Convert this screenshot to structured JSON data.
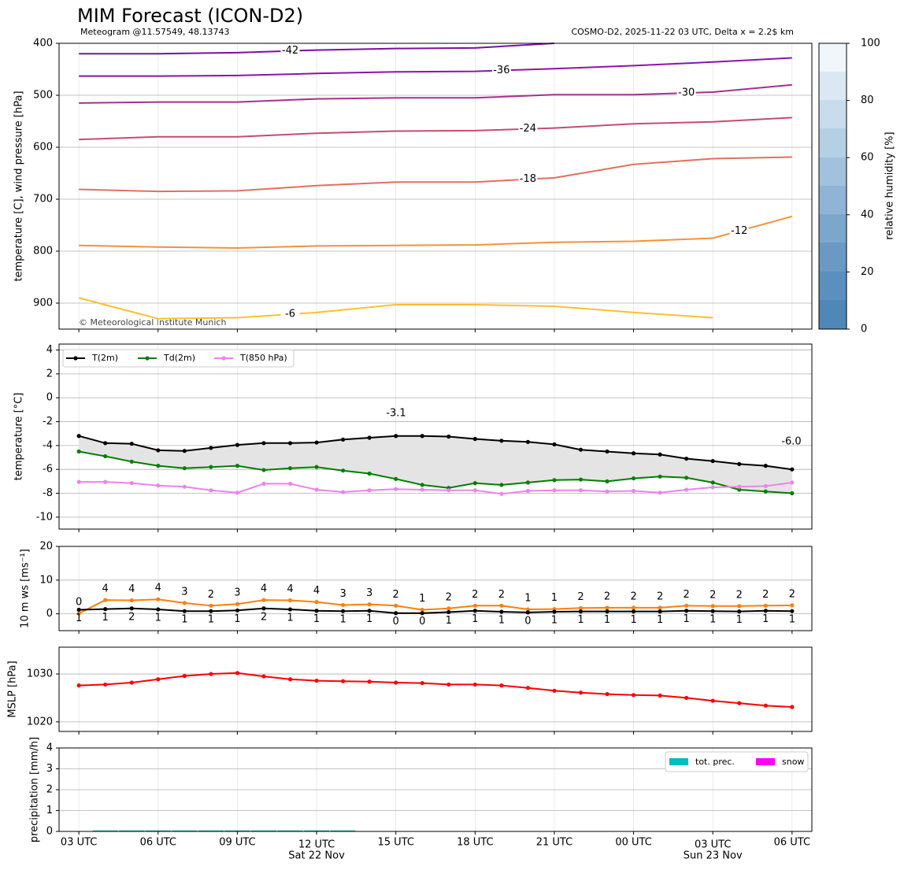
{
  "header": {
    "title": "MIM Forecast (ICON-D2)",
    "subtitle": "Meteogram @11.57549, 48.13743",
    "run_info": "COSMO-D2, 2025-11-22 03 UTC, Delta x = 2.2$ km",
    "copyright": "© Meteorological Institute Munich"
  },
  "time_axis": {
    "x": [
      0,
      1,
      2,
      3,
      4,
      5,
      6,
      7,
      8,
      9,
      10,
      11,
      12,
      13,
      14,
      15,
      16,
      17,
      18,
      19,
      20,
      21,
      22,
      23,
      24,
      25,
      26,
      27
    ],
    "xlim": [
      -0.75,
      27.75
    ],
    "xticks": [
      {
        "value": 0,
        "label": "03 UTC"
      },
      {
        "value": 3,
        "label": "06 UTC"
      },
      {
        "value": 6,
        "label": "09 UTC"
      },
      {
        "value": 9,
        "label": "12 UTC"
      },
      {
        "value": 12,
        "label": "15 UTC"
      },
      {
        "value": 15,
        "label": "18 UTC"
      },
      {
        "value": 18,
        "label": "21 UTC"
      },
      {
        "value": 21,
        "label": "00 UTC"
      },
      {
        "value": 24,
        "label": "03 UTC"
      },
      {
        "value": 27,
        "label": "06 UTC"
      }
    ],
    "date_labels": [
      {
        "value": 9,
        "label": "Sat 22 Nov"
      },
      {
        "value": 24,
        "label": "Sun 23 Nov"
      }
    ]
  },
  "chart_data": [
    {
      "type": "contour",
      "ylabel": "temperature [C], wind pressure [hPa]",
      "x": [
        0,
        3,
        6,
        9,
        12,
        15,
        18,
        21,
        24,
        27
      ],
      "ylim": [
        950,
        400
      ],
      "yticks": [
        400,
        500,
        600,
        700,
        800,
        900
      ],
      "grid": true,
      "series": [
        {
          "name": "-42",
          "color": "#7b10a0",
          "values": [
            420,
            420,
            418,
            413,
            410,
            409,
            400,
            null,
            null,
            null
          ]
        },
        {
          "name": "-36",
          "color": "#8b14aa",
          "values": [
            463,
            463,
            462,
            458,
            455,
            454,
            449,
            443,
            436,
            428
          ]
        },
        {
          "name": "-30",
          "color": "#a8308a",
          "values": [
            515,
            513,
            513,
            507,
            505,
            505,
            499,
            499,
            494,
            480
          ]
        },
        {
          "name": "-24",
          "color": "#c74c6c",
          "values": [
            585,
            580,
            580,
            573,
            569,
            568,
            563,
            555,
            551,
            543
          ]
        },
        {
          "name": "-18",
          "color": "#e2705c",
          "values": [
            681,
            685,
            684,
            674,
            667,
            667,
            659,
            633,
            622,
            619
          ]
        },
        {
          "name": "-12",
          "color": "#f5913a",
          "values": [
            789,
            792,
            794,
            790,
            789,
            788,
            783,
            781,
            775,
            733
          ]
        },
        {
          "name": "-6",
          "color": "#fbbf2e",
          "values": [
            890,
            930,
            928,
            918,
            903,
            903,
            906,
            918,
            928,
            null
          ]
        }
      ],
      "colorbar": {
        "label": "relative humidity [%]",
        "lim": [
          0,
          100
        ],
        "ticks": [
          0,
          20,
          40,
          60,
          80,
          100
        ]
      }
    },
    {
      "type": "line",
      "ylabel": "temperature [°C]",
      "ylim": [
        -11,
        4.5
      ],
      "yticks": [
        -10,
        -8,
        -6,
        -4,
        -2,
        0,
        2,
        4
      ],
      "grid": true,
      "shade_between_first_two": true,
      "legend": "upper left",
      "series": [
        {
          "name": "T(2m)",
          "color": "#000000",
          "values": [
            -3.2,
            -3.8,
            -3.85,
            -4.4,
            -4.45,
            -4.2,
            -3.95,
            -3.8,
            -3.8,
            -3.75,
            -3.5,
            -3.35,
            -3.2,
            -3.2,
            -3.25,
            -3.45,
            -3.6,
            -3.7,
            -3.9,
            -4.35,
            -4.5,
            -4.65,
            -4.75,
            -5.1,
            -5.3,
            -5.55,
            -5.7,
            -6.0
          ]
        },
        {
          "name": "Td(2m)",
          "color": "#008000",
          "values": [
            -4.5,
            -4.9,
            -5.35,
            -5.7,
            -5.9,
            -5.8,
            -5.7,
            -6.05,
            -5.9,
            -5.8,
            -6.1,
            -6.35,
            -6.8,
            -7.3,
            -7.55,
            -7.15,
            -7.3,
            -7.1,
            -6.9,
            -6.85,
            -7.0,
            -6.75,
            -6.6,
            -6.7,
            -7.1,
            -7.7,
            -7.85,
            -8.0
          ]
        },
        {
          "name": "T(850 hPa)",
          "color": "#ee82ee",
          "values": [
            -7.05,
            -7.05,
            -7.15,
            -7.35,
            -7.45,
            -7.75,
            -7.95,
            -7.2,
            -7.2,
            -7.7,
            -7.9,
            -7.75,
            -7.65,
            -7.7,
            -7.75,
            -7.75,
            -8.05,
            -7.8,
            -7.75,
            -7.75,
            -7.85,
            -7.8,
            -7.95,
            -7.7,
            -7.5,
            -7.45,
            -7.4,
            -7.1
          ]
        }
      ],
      "annotations": [
        {
          "text": "-3.1",
          "color": "#ff0000"
        },
        {
          "text": "-6.0",
          "color": "#0000ff"
        }
      ]
    },
    {
      "type": "line",
      "ylabel": "10 m ws [ms⁻¹]",
      "ylim": [
        -5,
        20
      ],
      "yticks": [
        0,
        10,
        20
      ],
      "grid": true,
      "series": [
        {
          "color": "#ff7f0e",
          "label_side": "above",
          "values": [
            0.1,
            4.1,
            4.0,
            4.3,
            3.2,
            2.4,
            2.9,
            4.1,
            4.0,
            3.5,
            2.6,
            2.8,
            2.4,
            1.2,
            1.6,
            2.4,
            2.4,
            1.3,
            1.4,
            1.7,
            1.8,
            1.8,
            1.8,
            2.4,
            2.3,
            2.3,
            2.4,
            2.5
          ],
          "value_labels": [
            "0",
            "4",
            "4",
            "4",
            "3",
            "2",
            "3",
            "4",
            "4",
            "4",
            "3",
            "3",
            "2",
            "1",
            "2",
            "2",
            "2",
            "1",
            "1",
            "2",
            "2",
            "2",
            "2",
            "2",
            "2",
            "2",
            "2",
            "2"
          ]
        },
        {
          "color": "#000000",
          "label_side": "below",
          "values": [
            1.2,
            1.4,
            1.6,
            1.3,
            0.8,
            0.8,
            1.0,
            1.6,
            1.3,
            0.9,
            0.8,
            0.9,
            0.2,
            0.2,
            0.5,
            0.9,
            0.6,
            0.4,
            0.6,
            0.7,
            0.7,
            0.7,
            0.7,
            0.9,
            0.8,
            0.7,
            0.9,
            0.8
          ],
          "value_labels": [
            "1",
            "1",
            "2",
            "1",
            "1",
            "1",
            "1",
            "2",
            "1",
            "1",
            "1",
            "1",
            "0",
            "0",
            "1",
            "1",
            "1",
            "0",
            "1",
            "1",
            "1",
            "1",
            "1",
            "1",
            "1",
            "1",
            "1",
            "1"
          ]
        }
      ]
    },
    {
      "type": "line",
      "ylabel": "MSLP [hPa]",
      "ylim": [
        1018,
        1035.6
      ],
      "yticks": [
        1020,
        1030
      ],
      "grid": true,
      "series": [
        {
          "color": "#ff0000",
          "values": [
            1027.6,
            1027.8,
            1028.2,
            1028.9,
            1029.6,
            1030.0,
            1030.2,
            1029.5,
            1028.9,
            1028.6,
            1028.5,
            1028.4,
            1028.2,
            1028.1,
            1027.8,
            1027.8,
            1027.6,
            1027.1,
            1026.5,
            1026.1,
            1025.8,
            1025.6,
            1025.5,
            1025.0,
            1024.4,
            1023.9,
            1023.4,
            1023.1
          ]
        }
      ]
    },
    {
      "type": "bar",
      "ylabel": "precipitation [mm/h]",
      "ylim": [
        0,
        4
      ],
      "yticks": [
        0,
        1,
        2,
        3,
        4
      ],
      "grid": true,
      "legend": "upper right",
      "series": [
        {
          "name": "tot. prec.",
          "color": "#00bfbf",
          "values": [
            0,
            0.01,
            0.01,
            0.01,
            0.01,
            0.01,
            0.01,
            0.01,
            0.01,
            0.01,
            0.01,
            0,
            0,
            0,
            0,
            0,
            0,
            0,
            0,
            0,
            0,
            0,
            0,
            0,
            0,
            0,
            0,
            0
          ]
        },
        {
          "name": "snow",
          "color": "#ff00ff",
          "values": [
            0,
            0,
            0,
            0,
            0,
            0,
            0,
            0,
            0,
            0,
            0,
            0,
            0,
            0,
            0,
            0,
            0,
            0,
            0,
            0,
            0,
            0,
            0,
            0,
            0,
            0,
            0,
            0
          ]
        }
      ]
    }
  ]
}
